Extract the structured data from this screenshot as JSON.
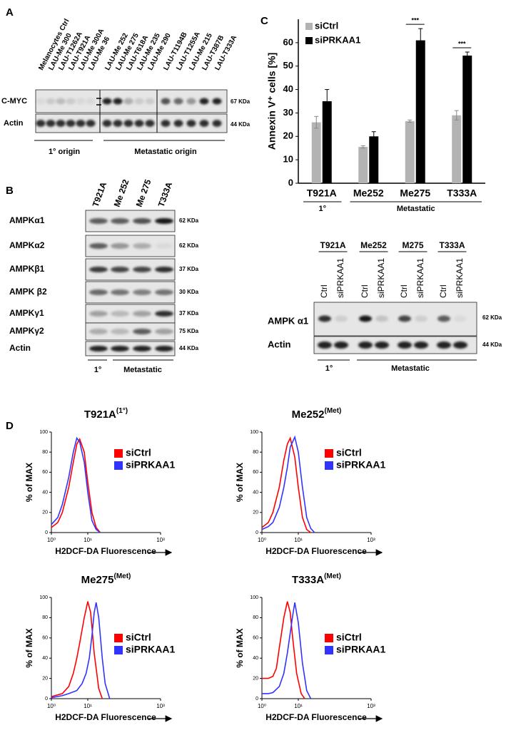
{
  "panel_labels": [
    "A",
    "B",
    "C",
    "D"
  ],
  "blot_a": {
    "lanes": [
      "Melanocytes Ctrl",
      "LAU-Me 300",
      "LAU-T1262A",
      "LAU-T921A",
      "LAU-Me 300A",
      "LAU-Me 36",
      "LAU-Me 252",
      "LAU-Me 275",
      "LAU-T618A",
      "LAU-Me 235",
      "LAU-Me 290",
      "LAU-T1194B",
      "LAU-T1255A",
      "LAU-Me 215",
      "LAU-T387B",
      "LAU-T333A"
    ],
    "rows": [
      "C-MYC",
      "Actin"
    ],
    "sizes": [
      "67 KDa",
      "44 KDa"
    ],
    "groups": [
      "1° origin",
      "Metastatic origin"
    ]
  },
  "blot_b": {
    "lanes": [
      "T921A",
      "Me 252",
      "Me 275",
      "T333A"
    ],
    "rows": [
      "AMPKα1",
      "AMPKα2",
      "AMPKβ1",
      "AMPK β2",
      "AMPKγ1",
      "AMPKγ2",
      "Actin"
    ],
    "sizes": [
      "62 KDa",
      "62 KDa",
      "37 KDa",
      "30 KDa",
      "37 KDa",
      "75 KDa",
      "44 KDa"
    ],
    "groups": [
      "1°",
      "Metastatic"
    ]
  },
  "blot_c": {
    "cell_lines": [
      "T921A",
      "Me252",
      "M275",
      "T333A"
    ],
    "lanes": [
      "Ctrl",
      "siPRKAA1",
      "Ctrl",
      "siPRKAA1",
      "Ctrl",
      "siPRKAA1",
      "Ctrl",
      "siPRKAA1"
    ],
    "rows": [
      "AMPK α1",
      "Actin"
    ],
    "sizes": [
      "62 KDa",
      "44 KDa"
    ],
    "groups": [
      "1°",
      "Metastatic"
    ]
  },
  "chart_data": [
    {
      "type": "bar",
      "ylabel": "Annexin V⁺ cells [%]",
      "categories": [
        "T921A",
        "Me252",
        "Me275",
        "T333A"
      ],
      "groups": [
        "1°",
        "Metastatic"
      ],
      "series": [
        {
          "name": "siCtrl",
          "color": "#b3b3b3",
          "values": [
            26,
            15.5,
            26.5,
            29
          ],
          "errors": [
            2.5,
            0.5,
            0.5,
            2
          ]
        },
        {
          "name": "siPRKAA1",
          "color": "#000000",
          "values": [
            35,
            20,
            61,
            54.5
          ],
          "errors": [
            5,
            2,
            5,
            1.5
          ]
        }
      ],
      "significance": [
        null,
        null,
        "***",
        "***"
      ],
      "ylim": [
        0,
        70
      ],
      "yticks": [
        0,
        10,
        20,
        30,
        40,
        50,
        60
      ],
      "legend": "upper-left"
    },
    {
      "type": "line",
      "title": "T921A",
      "title_sup": "(1°)",
      "xlabel": "H2DCF-DA Fluorescence",
      "ylabel": "% of MAX",
      "log_x": true,
      "xlim": [
        1,
        1000
      ],
      "xticks": [
        {
          "value": 1,
          "label": "10⁰"
        },
        {
          "value": 10,
          "label": "10¹"
        },
        {
          "value": 1000,
          "label": "10³"
        }
      ],
      "ylim": [
        0,
        100
      ],
      "yticks": [
        0,
        20,
        40,
        60,
        80,
        100
      ],
      "legend": "upper",
      "series": [
        {
          "name": "siCtrl",
          "color": "#ff0000",
          "x": [
            1,
            1.5,
            2,
            3,
            4,
            5,
            6,
            8,
            10,
            13,
            17,
            22
          ],
          "values": [
            5,
            10,
            20,
            45,
            70,
            88,
            93,
            80,
            50,
            20,
            5,
            0
          ]
        },
        {
          "name": "siPRKAA1",
          "color": "#3333ff",
          "x": [
            1,
            1.5,
            2,
            3,
            4,
            5,
            6,
            8,
            10,
            13,
            17,
            22
          ],
          "values": [
            8,
            15,
            28,
            55,
            80,
            94,
            90,
            70,
            40,
            12,
            3,
            0
          ]
        }
      ]
    },
    {
      "type": "line",
      "title": "Me252",
      "title_sup": "(Met)",
      "xlabel": "H2DCF-DA Fluorescence",
      "ylabel": "% of MAX",
      "log_x": true,
      "xlim": [
        1,
        1000
      ],
      "xticks": [
        {
          "value": 1,
          "label": "10⁰"
        },
        {
          "value": 10,
          "label": "10¹"
        },
        {
          "value": 1000,
          "label": "10³"
        }
      ],
      "ylim": [
        0,
        100
      ],
      "yticks": [
        0,
        20,
        40,
        60,
        80,
        100
      ],
      "legend": "upper",
      "series": [
        {
          "name": "siCtrl",
          "color": "#ff0000",
          "x": [
            1,
            1.5,
            2,
            3,
            4,
            5,
            6,
            8,
            10,
            13,
            17,
            22
          ],
          "values": [
            5,
            10,
            20,
            45,
            72,
            88,
            94,
            75,
            45,
            15,
            3,
            0
          ]
        },
        {
          "name": "siPRKAA1",
          "color": "#3333ff",
          "x": [
            1,
            1.5,
            2,
            3,
            4,
            5,
            6,
            8,
            10,
            13,
            17,
            22,
            28
          ],
          "values": [
            3,
            6,
            10,
            25,
            45,
            65,
            85,
            95,
            80,
            45,
            15,
            4,
            0
          ]
        }
      ]
    },
    {
      "type": "line",
      "title": "Me275",
      "title_sup": "(Met)",
      "xlabel": "H2DCF-DA Fluorescence",
      "ylabel": "% of MAX",
      "log_x": true,
      "xlim": [
        1,
        1000
      ],
      "xticks": [
        {
          "value": 1,
          "label": "10⁰"
        },
        {
          "value": 10,
          "label": "10¹"
        },
        {
          "value": 1000,
          "label": "10³"
        }
      ],
      "ylim": [
        0,
        100
      ],
      "yticks": [
        0,
        20,
        40,
        60,
        80,
        100
      ],
      "legend": "center",
      "series": [
        {
          "name": "siCtrl",
          "color": "#ff0000",
          "x": [
            1,
            2,
            3,
            4,
            5,
            6,
            8,
            10,
            12,
            15,
            20,
            25
          ],
          "values": [
            2,
            5,
            12,
            25,
            40,
            55,
            80,
            96,
            85,
            45,
            10,
            0
          ]
        },
        {
          "name": "siPRKAA1",
          "color": "#3333ff",
          "x": [
            1,
            2,
            3,
            5,
            7,
            9,
            11,
            13,
            15,
            17,
            20,
            25,
            30,
            40
          ],
          "values": [
            1,
            3,
            5,
            8,
            15,
            25,
            40,
            62,
            85,
            95,
            80,
            40,
            15,
            0
          ]
        }
      ]
    },
    {
      "type": "line",
      "title": "T333A",
      "title_sup": "(Met)",
      "xlabel": "H2DCF-DA Fluorescence",
      "ylabel": "% of MAX",
      "log_x": true,
      "xlim": [
        1,
        1000
      ],
      "xticks": [
        {
          "value": 1,
          "label": "10⁰"
        },
        {
          "value": 10,
          "label": "10¹"
        },
        {
          "value": 1000,
          "label": "10³"
        }
      ],
      "ylim": [
        0,
        100
      ],
      "yticks": [
        0,
        20,
        40,
        60,
        80,
        100
      ],
      "legend": "center",
      "series": [
        {
          "name": "siCtrl",
          "color": "#ff0000",
          "x": [
            1,
            1.5,
            2,
            2.5,
            3,
            4,
            5,
            6,
            7,
            9,
            12,
            15
          ],
          "values": [
            20,
            20,
            22,
            30,
            50,
            80,
            96,
            85,
            60,
            25,
            5,
            0
          ]
        },
        {
          "name": "siPRKAA1",
          "color": "#3333ff",
          "x": [
            1,
            1.5,
            2,
            3,
            4,
            5,
            6,
            7,
            8,
            10,
            13,
            17,
            22
          ],
          "values": [
            5,
            5,
            6,
            12,
            25,
            45,
            65,
            82,
            95,
            75,
            35,
            8,
            0
          ]
        }
      ]
    }
  ]
}
